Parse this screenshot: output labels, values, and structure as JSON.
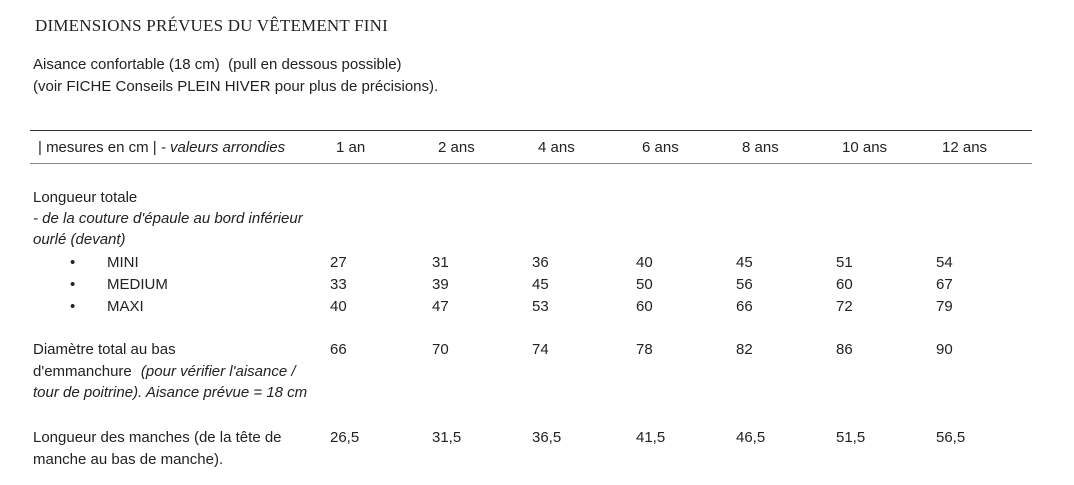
{
  "title": "DIMENSIONS PRÉVUES DU VÊTEMENT FINI",
  "intro": {
    "line1": [
      "Aisance confortable (18 cm)",
      "(pull en dessous possible)"
    ],
    "line2": [
      "(voir",
      "FICHE Conseils PLEIN HIVER",
      "pour plus de précisions)."
    ]
  },
  "table": {
    "header": [
      "| mesures en cm |",
      "- valeurs arrondies"
    ],
    "columns": [
      "1 an",
      "2 ans",
      "4 ans",
      "6 ans",
      "8 ans",
      "10 ans",
      "12 ans"
    ],
    "length": {
      "label": "Longueur totale",
      "note": [
        "- de la couture d'épaule au bord inférieur",
        "ourlé (devant)"
      ],
      "rows": [
        {
          "label": "MINI",
          "values": [
            27,
            31,
            36,
            40,
            45,
            51,
            54
          ]
        },
        {
          "label": "MEDIUM",
          "values": [
            33,
            39,
            45,
            50,
            56,
            60,
            67
          ]
        },
        {
          "label": "MAXI",
          "values": [
            40,
            47,
            53,
            60,
            66,
            72,
            79
          ]
        }
      ]
    },
    "chest": {
      "label": [
        "Diamètre total au bas",
        "d'emmanchure"
      ],
      "note": [
        "(pour vérifier l'aisance /",
        "tour de poitrine). Aisance prévue = 18 cm"
      ],
      "values": [
        66,
        70,
        74,
        78,
        82,
        86,
        90
      ]
    },
    "sleeve": {
      "label": [
        "Longueur des manches",
        "(de la tête de",
        "manche au bas de manche)."
      ],
      "values": [
        "26,5",
        "31,5",
        "36,5",
        "41,5",
        "46,5",
        "51,5",
        "56,5"
      ]
    }
  }
}
